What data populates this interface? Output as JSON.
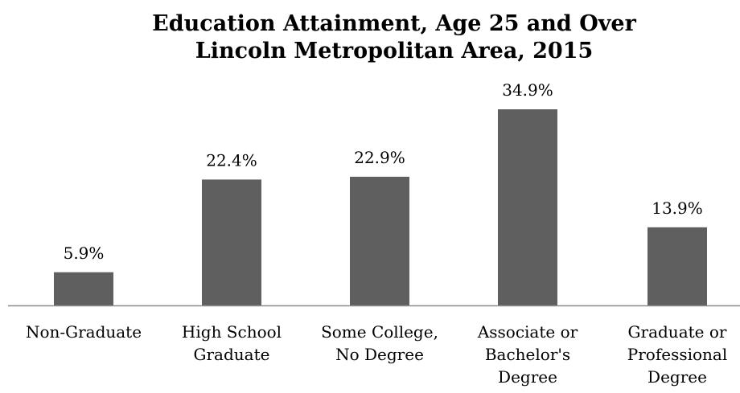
{
  "chart_data": {
    "type": "bar",
    "title": "Education Attainment, Age 25 and Over",
    "subtitle": "Lincoln Metropolitan Area, 2015",
    "categories": [
      [
        "Non-Graduate"
      ],
      [
        "High School",
        "Graduate"
      ],
      [
        "Some College,",
        "No Degree"
      ],
      [
        "Associate or",
        "Bachelor's",
        "Degree"
      ],
      [
        "Graduate or",
        "Professional",
        "Degree"
      ]
    ],
    "values": [
      5.9,
      22.4,
      22.9,
      34.9,
      13.9
    ],
    "value_labels": [
      "5.9%",
      "22.4%",
      "22.9%",
      "34.9%",
      "13.9%"
    ],
    "xlabel": "",
    "ylabel": "",
    "ylim": [
      0,
      40
    ],
    "grid": false,
    "legend": "none",
    "colors": {
      "bar": "#5f5f5f",
      "axis": "#8c8c8c",
      "text": "#000000"
    }
  }
}
